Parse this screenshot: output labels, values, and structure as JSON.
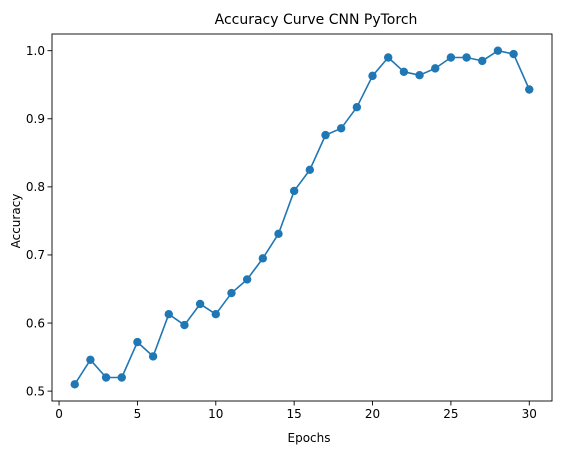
{
  "chart_data": {
    "type": "line",
    "title": "Accuracy Curve CNN PyTorch",
    "xlabel": "Epochs",
    "ylabel": "Accuracy",
    "xlim": [
      -0.45,
      31.45
    ],
    "ylim": [
      0.4855,
      1.0245
    ],
    "x_ticks": [
      0,
      5,
      10,
      15,
      20,
      25,
      30
    ],
    "y_ticks": [
      0.5,
      0.6,
      0.7,
      0.8,
      0.9,
      1.0
    ],
    "x_tick_labels": [
      "0",
      "5",
      "10",
      "15",
      "20",
      "25",
      "30"
    ],
    "y_tick_labels": [
      "0.5",
      "0.6",
      "0.7",
      "0.8",
      "0.9",
      "1.0"
    ],
    "grid": false,
    "legend": "none",
    "series": [
      {
        "color": "#1f77b4",
        "marker": "circle",
        "x": [
          1,
          2,
          3,
          4,
          5,
          6,
          7,
          8,
          9,
          10,
          11,
          12,
          13,
          14,
          15,
          16,
          17,
          18,
          19,
          20,
          21,
          22,
          23,
          24,
          25,
          26,
          27,
          28,
          29,
          30
        ],
        "y": [
          0.51,
          0.546,
          0.52,
          0.52,
          0.572,
          0.551,
          0.613,
          0.597,
          0.628,
          0.613,
          0.644,
          0.664,
          0.695,
          0.731,
          0.794,
          0.825,
          0.876,
          0.886,
          0.917,
          0.963,
          0.99,
          0.969,
          0.964,
          0.974,
          0.99,
          0.99,
          0.985,
          1.0,
          0.995,
          0.943
        ]
      }
    ]
  }
}
